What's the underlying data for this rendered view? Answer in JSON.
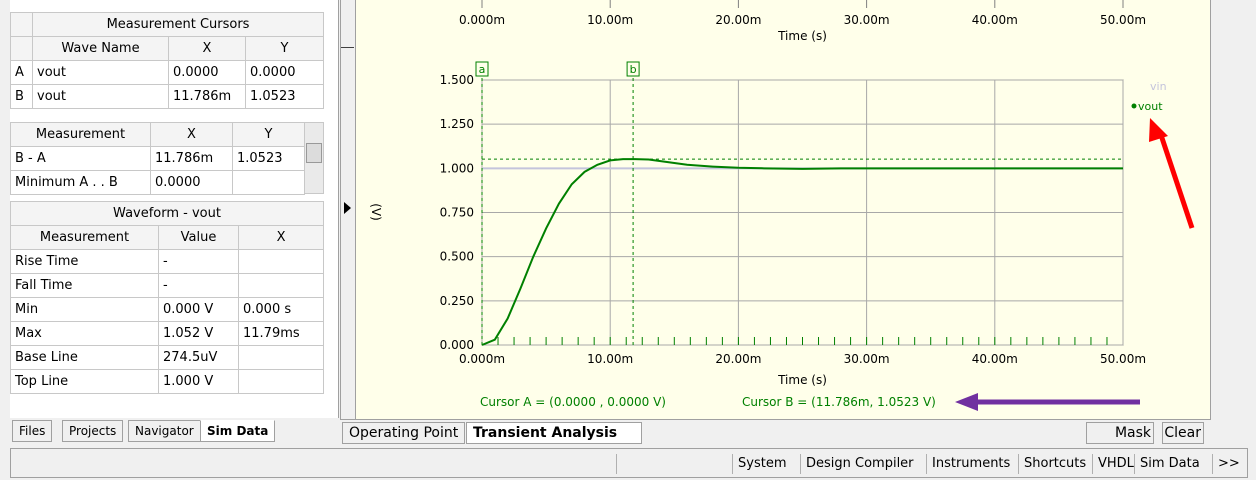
{
  "cursors_table": {
    "title": "Measurement Cursors",
    "headers": [
      "Wave Name",
      "X",
      "Y"
    ],
    "rows": [
      [
        "A",
        "vout",
        "0.0000",
        "0.0000"
      ],
      [
        "B",
        "vout",
        "11.786m",
        "1.0523"
      ]
    ]
  },
  "diff_table": {
    "headers": [
      "Measurement",
      "X",
      "Y"
    ],
    "rows": [
      [
        "B - A",
        "11.786m",
        "1.0523"
      ],
      [
        "Minimum A . . B",
        "0.0000"
      ]
    ]
  },
  "waveform_table": {
    "title": "Waveform - vout",
    "headers": [
      "Measurement",
      "Value",
      "X"
    ],
    "rows": [
      [
        "Rise Time",
        "-"
      ],
      [
        "Fall Time",
        "-"
      ],
      [
        "Min",
        "0.000 V",
        "0.000 s"
      ],
      [
        "Max",
        "1.052 V",
        "11.79ms"
      ],
      [
        "Base Line",
        "274.5uV"
      ],
      [
        "Top Line",
        "1.000 V"
      ]
    ]
  },
  "left_tabs": [
    "Files",
    "Projects",
    "Navigator",
    "Sim Data"
  ],
  "plot": {
    "type": "line",
    "xlabel": "Time (s)",
    "ylabel": "(V)",
    "xlim": [
      0,
      50
    ],
    "ylim": [
      0,
      1.5
    ],
    "xticks": [
      {
        "value": 0,
        "label": "0.000m"
      },
      {
        "value": 10,
        "label": "10.00m"
      },
      {
        "value": 20,
        "label": "20.00m"
      },
      {
        "value": 30,
        "label": "30.00m"
      },
      {
        "value": 40,
        "label": "40.00m"
      },
      {
        "value": 50,
        "label": "50.00m"
      }
    ],
    "yticks": [
      {
        "value": 0,
        "label": "0.000"
      },
      {
        "value": 0.25,
        "label": "0.250"
      },
      {
        "value": 0.5,
        "label": "0.500"
      },
      {
        "value": 0.75,
        "label": "0.750"
      },
      {
        "value": 1,
        "label": "1.000"
      },
      {
        "value": 1.25,
        "label": "1.250"
      },
      {
        "value": 1.5,
        "label": "1.500"
      }
    ],
    "grid": true,
    "series": [
      {
        "name": "vin",
        "color": "#c4c4dc",
        "x": [
          0,
          50
        ],
        "values": [
          1,
          1
        ]
      },
      {
        "name": "vout",
        "color": "#008000",
        "x": [
          0,
          1,
          2,
          3,
          4,
          5,
          6,
          7,
          8,
          9,
          10,
          11,
          11.786,
          13,
          14,
          15,
          16,
          18,
          20,
          22,
          25,
          28,
          30,
          35,
          40,
          45,
          50
        ],
        "values": [
          0,
          0.03,
          0.15,
          0.32,
          0.5,
          0.66,
          0.8,
          0.91,
          0.98,
          1.02,
          1.045,
          1.052,
          1.0523,
          1.05,
          1.04,
          1.03,
          1.02,
          1.01,
          1.003,
          1.0,
          0.997,
          1.0,
          1.0,
          1.0,
          1.0,
          1.0,
          1.0
        ]
      }
    ],
    "cursors": [
      {
        "name": "a",
        "x": 0
      },
      {
        "name": "b",
        "x": 11.786,
        "y": 1.0523
      }
    ],
    "cursor_labels": [
      "Cursor A = (0.0000 , 0.0000 V)",
      "Cursor B = (11.786m, 1.0523 V)"
    ]
  },
  "bottom_tabs": [
    "Operating Point",
    "Transient Analysis"
  ],
  "right_buttons": [
    "Mask Leve",
    "Clear"
  ],
  "status_buttons": [
    "System",
    "Design Compiler",
    "Instruments",
    "Shortcuts",
    "VHDL",
    "Sim Data",
    ">>"
  ]
}
